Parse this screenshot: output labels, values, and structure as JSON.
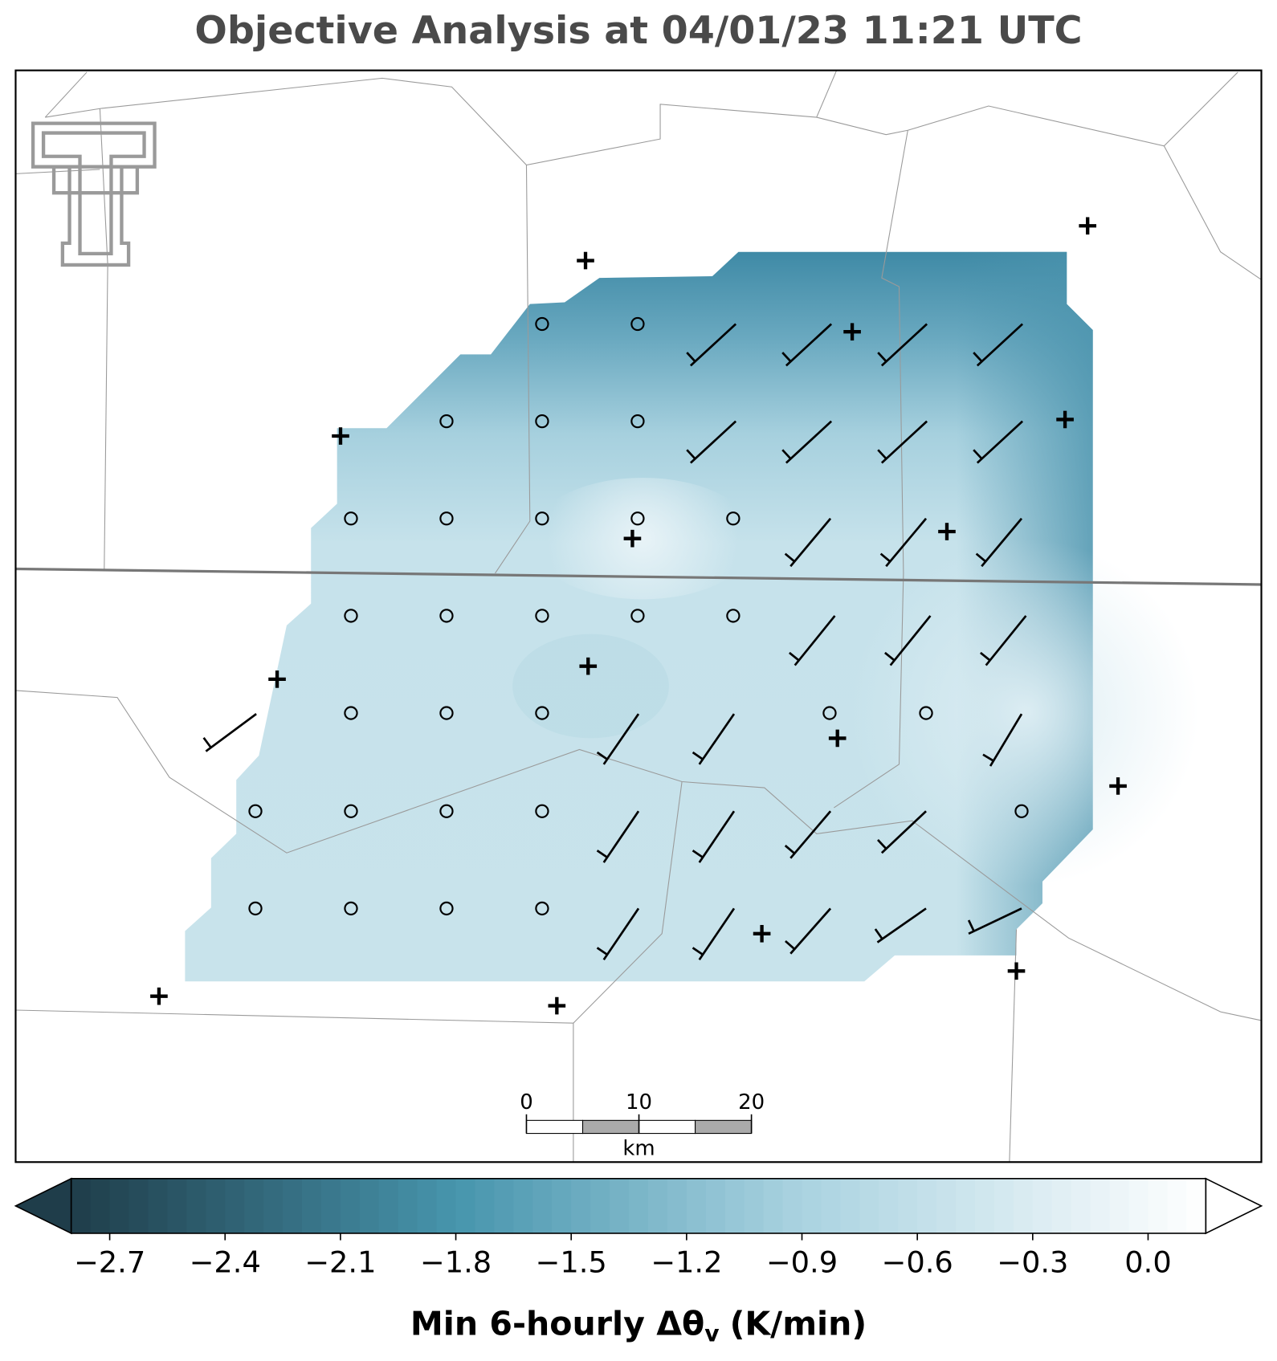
{
  "title": "Objective Analysis at 04/01/23 11:21 UTC",
  "colorbar": {
    "range": [
      -2.8,
      0.15
    ],
    "ticks": [
      {
        "value": -2.7,
        "label": "−2.7"
      },
      {
        "value": -2.4,
        "label": "−2.4"
      },
      {
        "value": -2.1,
        "label": "−2.1"
      },
      {
        "value": -1.8,
        "label": "−1.8"
      },
      {
        "value": -1.5,
        "label": "−1.5"
      },
      {
        "value": -1.2,
        "label": "−1.2"
      },
      {
        "value": -0.9,
        "label": "−0.9"
      },
      {
        "value": -0.6,
        "label": "−0.6"
      },
      {
        "value": -0.3,
        "label": "−0.3"
      },
      {
        "value": 0.0,
        "label": "0.0"
      }
    ],
    "label": {
      "main": "Min 6-hourly Δθ",
      "subscript": "v",
      "unit": "(K/min)"
    }
  },
  "scale_bar": {
    "ticks": [
      0,
      10,
      20
    ],
    "unit": "km"
  }
}
